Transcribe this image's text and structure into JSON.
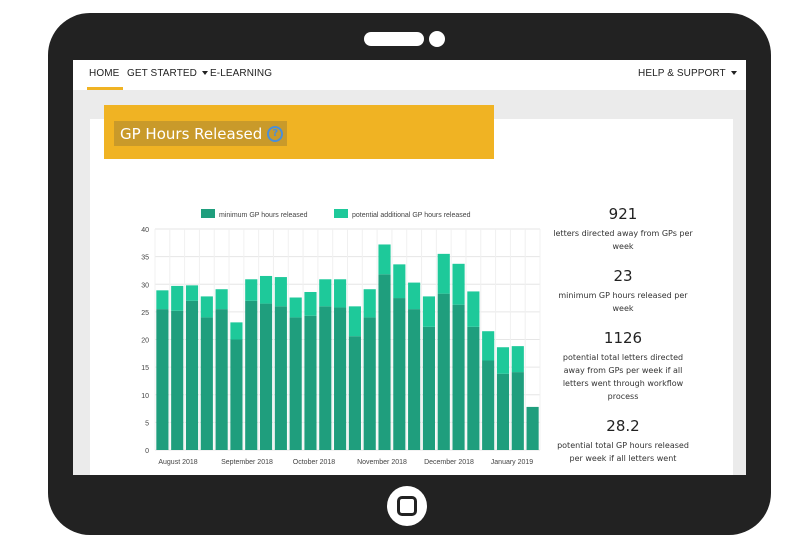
{
  "nav": {
    "items": [
      {
        "label": "HOME"
      },
      {
        "label": "GET STARTED"
      },
      {
        "label": "E-LEARNING"
      },
      {
        "label": "HELP & SUPPORT"
      }
    ]
  },
  "page": {
    "title": "GP Hours Released",
    "help_icon": "question-circle-icon"
  },
  "colors": {
    "accent": "#f0b323",
    "series_min": "#1f9e7d",
    "series_potential": "#1ec99a",
    "device": "#222222"
  },
  "stats": [
    {
      "value": "921",
      "label": "letters directed away from GPs per week"
    },
    {
      "value": "23",
      "label": "minimum GP hours released per week"
    },
    {
      "value": "1126",
      "label": "potential total letters directed away from GPs per week if all letters went through workflow process"
    },
    {
      "value": "28.2",
      "label": "potential total GP hours released per week if all letters went"
    }
  ],
  "chart_data": {
    "type": "bar",
    "stacked": true,
    "legend_position": "top",
    "grid": true,
    "ylim": [
      0,
      40
    ],
    "yticks": [
      0,
      5,
      10,
      15,
      20,
      25,
      30,
      35,
      40
    ],
    "xtick_labels": [
      "August 2018",
      "September 2018",
      "October 2018",
      "November 2018",
      "December 2018",
      "January 2019"
    ],
    "series": [
      {
        "name": "minimum GP hours released",
        "values": [
          25.5,
          25.2,
          27,
          24,
          25.5,
          20,
          27,
          26.5,
          26,
          24,
          24.3,
          26,
          25.8,
          20.6,
          24,
          31.8,
          27.5,
          25.5,
          22.3,
          28.3,
          26.3,
          22.3,
          16.2,
          13.8,
          14.1,
          7.8
        ]
      },
      {
        "name": "potential additional GP hours released",
        "values": [
          3.4,
          4.5,
          2.8,
          3.8,
          3.6,
          3.1,
          3.9,
          5,
          5.3,
          3.6,
          4.3,
          4.9,
          5.1,
          5.4,
          5.1,
          5.4,
          6.1,
          4.8,
          5.5,
          7.2,
          7.4,
          6.4,
          5.3,
          4.8,
          4.7,
          0
        ]
      }
    ]
  }
}
